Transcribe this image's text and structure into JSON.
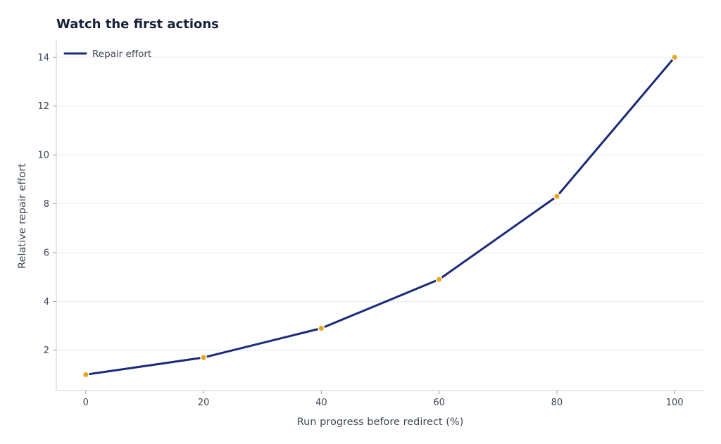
{
  "chart_data": {
    "type": "line",
    "title": "Watch the first actions",
    "xlabel": "Run progress before redirect (%)",
    "ylabel": "Relative repair effort",
    "x": [
      0,
      20,
      40,
      60,
      80,
      100
    ],
    "series": [
      {
        "name": "Repair effort",
        "values": [
          1.0,
          1.7,
          2.9,
          4.9,
          8.3,
          14.0
        ],
        "line_color": "#1b2a7a",
        "marker_color": "#e8a317"
      }
    ],
    "xlim": [
      -5,
      105
    ],
    "ylim": [
      0.35,
      14.7
    ],
    "x_ticks": [
      0,
      20,
      40,
      60,
      80,
      100
    ],
    "y_ticks": [
      2,
      4,
      6,
      8,
      10,
      12,
      14
    ],
    "grid": "horizontal",
    "legend_position": "top-left"
  }
}
